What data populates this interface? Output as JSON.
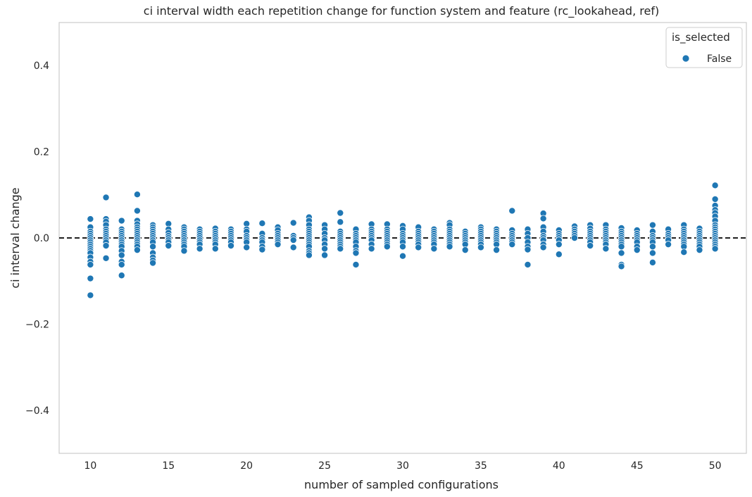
{
  "chart_data": {
    "type": "scatter",
    "title": "ci interval width each repetition change for function system and feature (rc_lookahead, ref)",
    "xlabel": "number of sampled configurations",
    "ylabel": "ci interval change",
    "xlim": [
      8,
      52
    ],
    "ylim": [
      -0.5,
      0.5
    ],
    "x_ticks": [
      10,
      15,
      20,
      25,
      30,
      35,
      40,
      45,
      50
    ],
    "x_tick_labels": [
      "10",
      "15",
      "20",
      "25",
      "30",
      "35",
      "40",
      "45",
      "50"
    ],
    "y_ticks": [
      -0.4,
      -0.2,
      0.0,
      0.2,
      0.4
    ],
    "y_tick_labels": [
      "−0.4",
      "−0.2",
      "0.0",
      "0.2",
      "0.4"
    ],
    "grid": false,
    "reference_line": {
      "y": 0.0,
      "style": "dashed",
      "color": "#000000"
    },
    "legend": {
      "title": "is_selected",
      "placement": "top-right"
    },
    "series": [
      {
        "name": "False",
        "color": "#1f77b4",
        "points": [
          {
            "x": 10,
            "ys": [
              0.044,
              0.025,
              0.015,
              0.01,
              0.005,
              0.0,
              -0.005,
              -0.01,
              -0.015,
              -0.02,
              -0.025,
              -0.03,
              -0.035,
              -0.045,
              -0.055,
              -0.062,
              -0.094,
              -0.133
            ]
          },
          {
            "x": 11,
            "ys": [
              0.094,
              0.044,
              0.038,
              0.03,
              0.02,
              0.015,
              0.01,
              0.005,
              0.0,
              -0.005,
              -0.01,
              -0.018,
              -0.047
            ]
          },
          {
            "x": 12,
            "ys": [
              0.04,
              0.02,
              0.015,
              0.01,
              0.005,
              0.0,
              -0.005,
              -0.01,
              -0.015,
              -0.02,
              -0.03,
              -0.04,
              -0.055,
              -0.062,
              -0.087
            ]
          },
          {
            "x": 13,
            "ys": [
              0.101,
              0.063,
              0.04,
              0.032,
              0.025,
              0.02,
              0.015,
              0.01,
              0.005,
              0.0,
              -0.005,
              -0.01,
              -0.015,
              -0.02,
              -0.028
            ]
          },
          {
            "x": 14,
            "ys": [
              0.03,
              0.025,
              0.02,
              0.015,
              0.01,
              0.005,
              0.0,
              -0.005,
              -0.01,
              -0.02,
              -0.035,
              -0.045,
              -0.052,
              -0.058
            ]
          },
          {
            "x": 15,
            "ys": [
              0.033,
              0.02,
              0.012,
              0.005,
              0.0,
              -0.005,
              -0.01,
              -0.018
            ]
          },
          {
            "x": 16,
            "ys": [
              0.025,
              0.02,
              0.015,
              0.01,
              0.005,
              0.0,
              -0.005,
              -0.01,
              -0.015,
              -0.02,
              -0.03
            ]
          },
          {
            "x": 17,
            "ys": [
              0.02,
              0.015,
              0.01,
              0.005,
              0.0,
              -0.005,
              -0.01,
              -0.015,
              -0.025
            ]
          },
          {
            "x": 18,
            "ys": [
              0.022,
              0.015,
              0.01,
              0.005,
              0.0,
              -0.005,
              -0.01,
              -0.015,
              -0.025
            ]
          },
          {
            "x": 19,
            "ys": [
              0.02,
              0.015,
              0.01,
              0.005,
              0.0,
              -0.005,
              -0.01,
              -0.018
            ]
          },
          {
            "x": 20,
            "ys": [
              0.033,
              0.02,
              0.015,
              0.005,
              0.0,
              -0.005,
              -0.01,
              -0.022
            ]
          },
          {
            "x": 21,
            "ys": [
              0.034,
              0.01,
              0.0,
              -0.005,
              -0.01,
              -0.02,
              -0.027
            ]
          },
          {
            "x": 22,
            "ys": [
              0.025,
              0.018,
              0.01,
              0.005,
              0.0,
              -0.005,
              -0.01,
              -0.015
            ]
          },
          {
            "x": 23,
            "ys": [
              0.035,
              0.005,
              0.0,
              -0.005,
              -0.022
            ]
          },
          {
            "x": 24,
            "ys": [
              0.048,
              0.04,
              0.03,
              0.02,
              0.015,
              0.01,
              0.005,
              0.0,
              -0.005,
              -0.01,
              -0.015,
              -0.02,
              -0.03,
              -0.035,
              -0.04
            ]
          },
          {
            "x": 25,
            "ys": [
              0.03,
              0.02,
              0.01,
              0.0,
              -0.005,
              -0.015,
              -0.025,
              -0.04
            ]
          },
          {
            "x": 26,
            "ys": [
              0.058,
              0.037,
              0.015,
              0.01,
              0.005,
              0.0,
              -0.005,
              -0.01,
              -0.015,
              -0.02,
              -0.025
            ]
          },
          {
            "x": 27,
            "ys": [
              0.02,
              0.01,
              0.005,
              0.0,
              -0.005,
              -0.01,
              -0.02,
              -0.03,
              -0.035,
              -0.062
            ]
          },
          {
            "x": 28,
            "ys": [
              0.032,
              0.02,
              0.015,
              0.01,
              0.005,
              0.0,
              -0.005,
              -0.015,
              -0.025
            ]
          },
          {
            "x": 29,
            "ys": [
              0.032,
              0.02,
              0.015,
              0.01,
              0.005,
              0.0,
              -0.005,
              -0.01,
              -0.015,
              -0.02
            ]
          },
          {
            "x": 30,
            "ys": [
              0.028,
              0.02,
              0.01,
              0.005,
              0.0,
              -0.005,
              -0.01,
              -0.02,
              -0.042
            ]
          },
          {
            "x": 31,
            "ys": [
              0.025,
              0.015,
              0.01,
              0.005,
              0.0,
              -0.005,
              -0.01,
              -0.015,
              -0.022
            ]
          },
          {
            "x": 32,
            "ys": [
              0.02,
              0.015,
              0.01,
              0.005,
              0.0,
              -0.005,
              -0.01,
              -0.015,
              -0.025
            ]
          },
          {
            "x": 33,
            "ys": [
              0.035,
              0.03,
              0.02,
              0.015,
              0.01,
              0.005,
              0.0,
              -0.005,
              -0.01,
              -0.015,
              -0.02
            ]
          },
          {
            "x": 34,
            "ys": [
              0.015,
              0.01,
              0.005,
              0.0,
              -0.005,
              -0.01,
              -0.015,
              -0.028
            ]
          },
          {
            "x": 35,
            "ys": [
              0.025,
              0.02,
              0.015,
              0.01,
              0.005,
              0.0,
              -0.005,
              -0.01,
              -0.015,
              -0.022
            ]
          },
          {
            "x": 36,
            "ys": [
              0.02,
              0.015,
              0.01,
              0.005,
              0.0,
              -0.005,
              -0.01,
              -0.015,
              -0.028
            ]
          },
          {
            "x": 37,
            "ys": [
              0.063,
              0.018,
              0.01,
              0.005,
              0.0,
              -0.005,
              -0.01,
              -0.015
            ]
          },
          {
            "x": 38,
            "ys": [
              0.02,
              0.01,
              0.0,
              -0.01,
              -0.02,
              -0.027,
              -0.062
            ]
          },
          {
            "x": 39,
            "ys": [
              0.057,
              0.045,
              0.025,
              0.015,
              0.005,
              0.0,
              -0.005,
              -0.015,
              -0.022
            ]
          },
          {
            "x": 40,
            "ys": [
              0.018,
              0.01,
              0.005,
              0.0,
              -0.005,
              -0.015,
              -0.038
            ]
          },
          {
            "x": 41,
            "ys": [
              0.027,
              0.02,
              0.015,
              0.01,
              0.005,
              0.0
            ]
          },
          {
            "x": 42,
            "ys": [
              0.03,
              0.022,
              0.015,
              0.01,
              0.005,
              0.0,
              -0.005,
              -0.01,
              -0.018
            ]
          },
          {
            "x": 43,
            "ys": [
              0.03,
              0.02,
              0.015,
              0.01,
              0.005,
              0.0,
              -0.005,
              -0.01,
              -0.015,
              -0.025
            ]
          },
          {
            "x": 44,
            "ys": [
              0.023,
              0.015,
              0.01,
              0.005,
              0.0,
              -0.005,
              -0.01,
              -0.015,
              -0.02,
              -0.035,
              -0.062,
              -0.066
            ]
          },
          {
            "x": 45,
            "ys": [
              0.018,
              0.01,
              0.005,
              0.0,
              -0.005,
              -0.01,
              -0.02,
              -0.028
            ]
          },
          {
            "x": 46,
            "ys": [
              0.03,
              0.015,
              0.005,
              0.0,
              -0.005,
              -0.01,
              -0.02,
              -0.035,
              -0.057
            ]
          },
          {
            "x": 47,
            "ys": [
              0.02,
              0.01,
              0.005,
              0.0,
              -0.005,
              -0.015
            ]
          },
          {
            "x": 48,
            "ys": [
              0.03,
              0.02,
              0.015,
              0.01,
              0.005,
              0.0,
              -0.005,
              -0.01,
              -0.015,
              -0.02,
              -0.033
            ]
          },
          {
            "x": 49,
            "ys": [
              0.022,
              0.015,
              0.01,
              0.005,
              0.0,
              -0.005,
              -0.01,
              -0.015,
              -0.02,
              -0.028
            ]
          },
          {
            "x": 50,
            "ys": [
              0.122,
              0.09,
              0.075,
              0.065,
              0.058,
              0.05,
              0.04,
              0.03,
              0.025,
              0.02,
              0.015,
              0.01,
              0.005,
              0.0,
              -0.005,
              -0.01,
              -0.015,
              -0.02,
              -0.025
            ]
          }
        ]
      }
    ]
  }
}
